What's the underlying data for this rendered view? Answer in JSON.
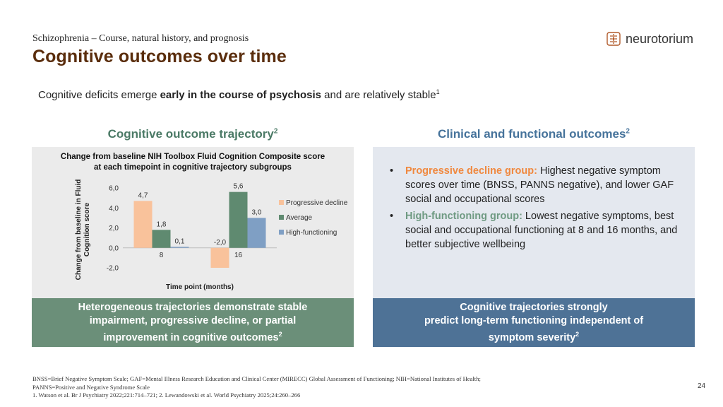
{
  "header": {
    "breadcrumb": "Schizophrenia – Course, natural history, and prognosis",
    "title": "Cognitive outcomes over time",
    "logo_text": "neurotorium",
    "logo_icon": "brain-icon"
  },
  "intro": {
    "text_start": "Cognitive deficits emerge ",
    "text_bold": "early in the course of psychosis",
    "text_end": " and are relatively stable",
    "sup": "1"
  },
  "left_panel": {
    "heading": "Cognitive outcome trajectory",
    "heading_sup": "2",
    "callout_line1": "Heterogeneous trajectories demonstrate stable",
    "callout_line2": "impairment, progressive decline, or partial",
    "callout_line3": "improvement in cognitive outcomes",
    "callout_sup": "2"
  },
  "right_panel": {
    "heading": "Clinical and functional outcomes",
    "heading_sup": "2",
    "bullets": [
      {
        "dot": "•",
        "highlight": "Progressive decline group:",
        "text": " Highest negative symptom scores over time (BNSS, PANNS negative), and lower GAF social and occupational scores"
      },
      {
        "dot": "•",
        "highlight": "High-functioning group:",
        "text": " Lowest negative symptoms, best social and occupational functioning at 8 and 16 months, and better subjective wellbeing"
      }
    ],
    "callout_line1": "Cognitive trajectories strongly",
    "callout_line2": "predict long-term functioning independent of",
    "callout_line3": "symptom severity",
    "callout_sup": "2"
  },
  "chart_data": {
    "type": "bar",
    "title_line1": "Change from baseline NIH Toolbox Fluid Cognition Composite score",
    "title_line2": "at each timepoint in cognitive trajectory subgroups",
    "xlabel": "Time point (months)",
    "ylabel_line1": "Change from baseline in Fluid",
    "ylabel_line2": "Cognition score",
    "categories": [
      "8",
      "16"
    ],
    "ylim": [
      -2.0,
      6.0
    ],
    "yticks": [
      "6,0",
      "4,0",
      "2,0",
      "0,0",
      "-2,0"
    ],
    "series": [
      {
        "name": "Progressive decline",
        "values": [
          4.7,
          -2.0
        ],
        "labels": [
          "4,7",
          "-2,0"
        ],
        "color": "#f9c29b"
      },
      {
        "name": "Average",
        "values": [
          1.8,
          5.6
        ],
        "labels": [
          "1,8",
          "5,6"
        ],
        "color": "#5f8a70"
      },
      {
        "name": "High-functioning",
        "values": [
          0.1,
          3.0
        ],
        "labels": [
          "0,1",
          "3,0"
        ],
        "color": "#7f9fc4"
      }
    ],
    "legend_position": "right",
    "grid": false
  },
  "footer": {
    "line1": "BNSS=Brief Negative Symptom Scale; GAF=Mental Illness Research Education and Clinical Center (MIRECC) Global Assessment of Functioning; NIH=National Institutes of Health;",
    "line2": "PANNS=Positive and Negative Syndrome Scale",
    "line3": "1. Watson et al. Br J Psychiatry 2022;221:714–721; 2. Lewandowski et al. World Psychiatry 2025;24:260–266",
    "page_number": "24"
  }
}
